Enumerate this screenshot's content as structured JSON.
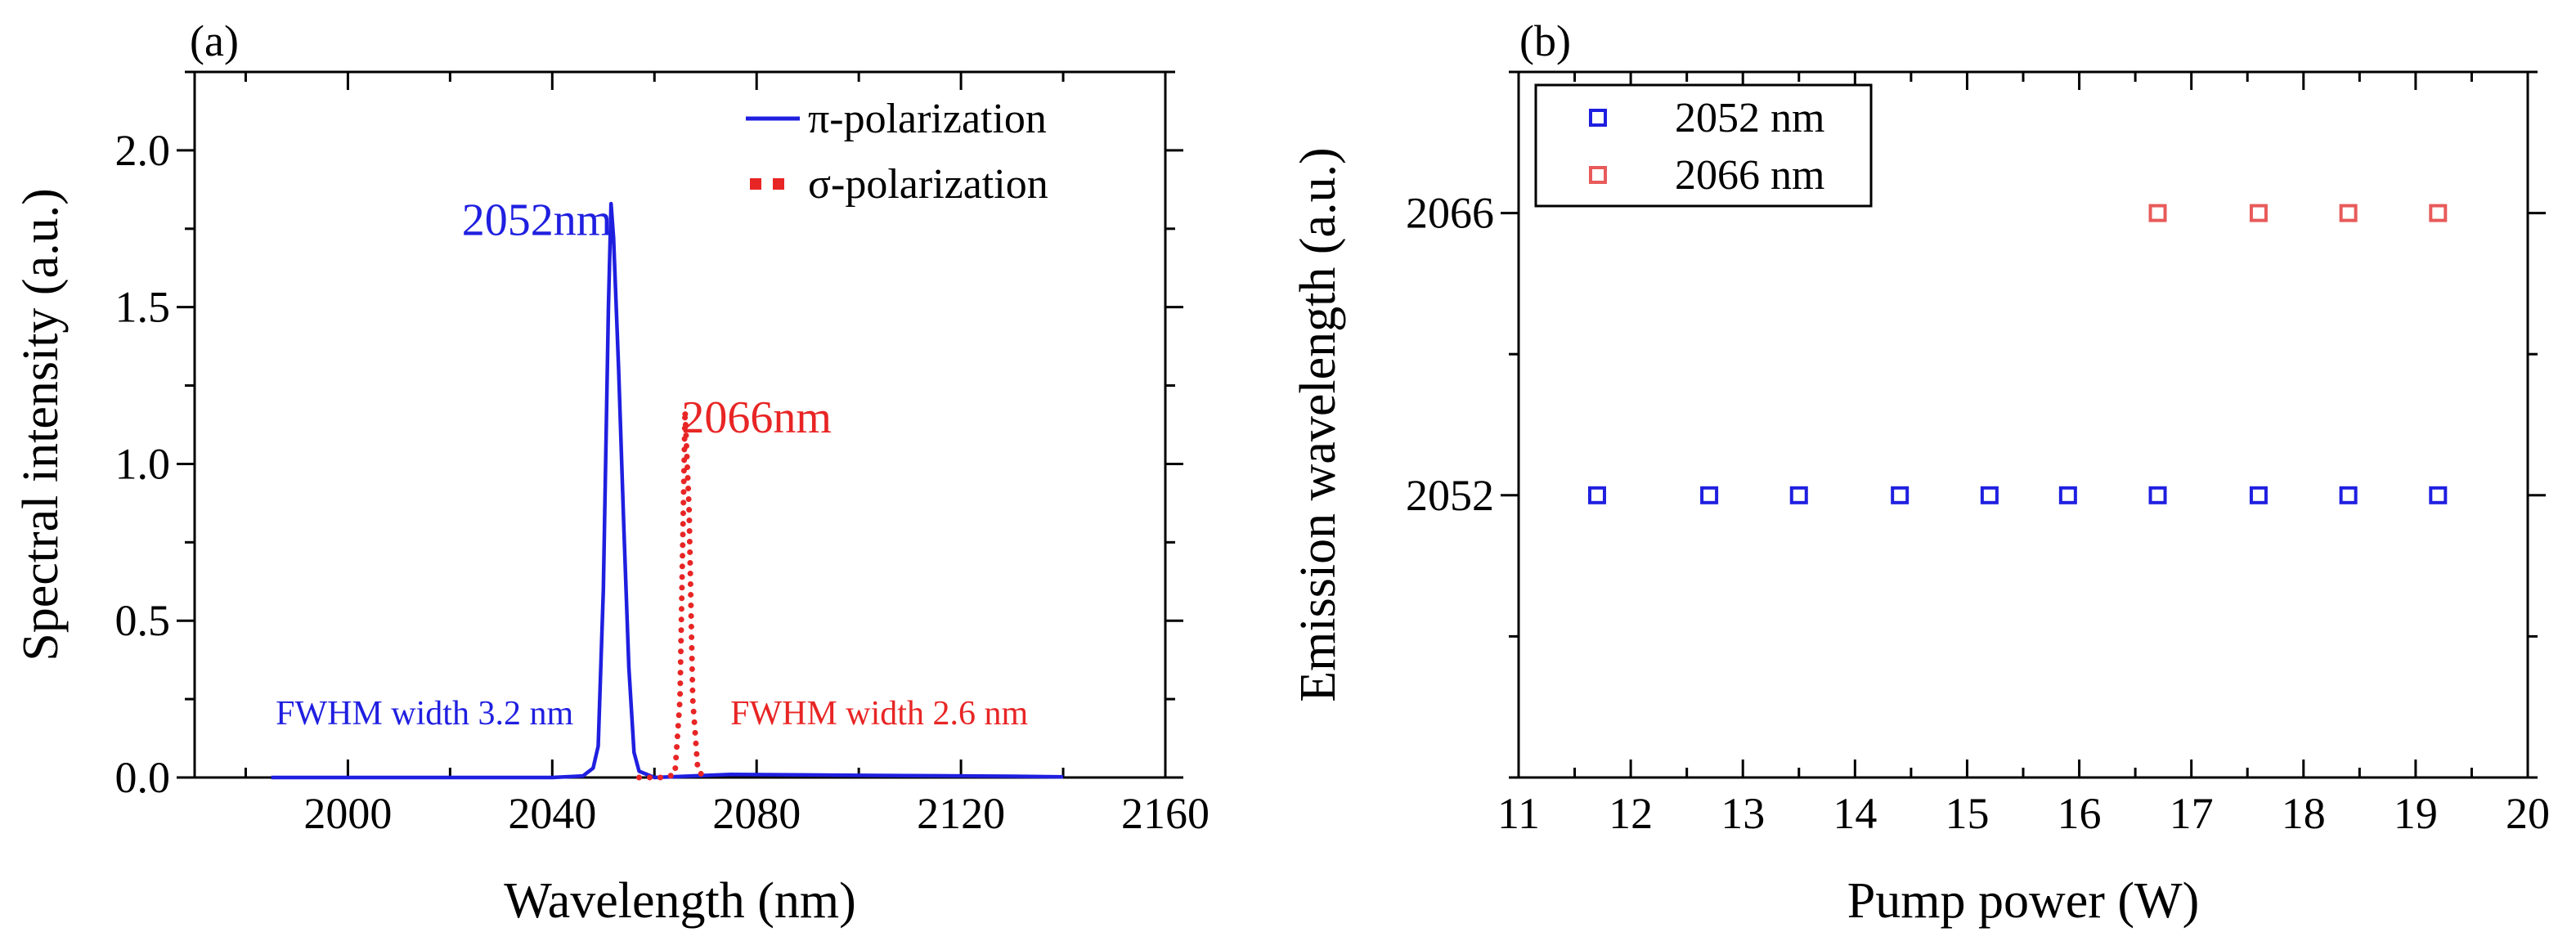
{
  "chart_data": [
    {
      "panel_label": "(a)",
      "type": "line",
      "xlabel": "Wavelength (nm)",
      "ylabel": "Spectral intensity (a.u.)",
      "xlim": [
        1970,
        2160
      ],
      "ylim": [
        0,
        2.25
      ],
      "x_ticks": [
        2000,
        2040,
        2080,
        2120,
        2160
      ],
      "x_tick_labels": [
        "2000",
        "2040",
        "2080",
        "2120",
        "2160"
      ],
      "y_ticks": [
        0.0,
        0.5,
        1.0,
        1.5,
        2.0
      ],
      "y_tick_labels": [
        "0.0",
        "0.5",
        "1.0",
        "1.5",
        "2.0"
      ],
      "legend_position": "top-right",
      "series": [
        {
          "name": "π-polarization",
          "color": "#1f1fe0",
          "style": "solid",
          "points": [
            [
              1985,
              0.0
            ],
            [
              2040,
              0.0
            ],
            [
              2046,
              0.005
            ],
            [
              2048,
              0.03
            ],
            [
              2049,
              0.1
            ],
            [
              2050,
              0.6
            ],
            [
              2051,
              1.5
            ],
            [
              2051.5,
              1.83
            ],
            [
              2052,
              1.72
            ],
            [
              2053,
              1.3
            ],
            [
              2054,
              0.8
            ],
            [
              2055,
              0.35
            ],
            [
              2056,
              0.08
            ],
            [
              2057,
              0.02
            ],
            [
              2060,
              0.0
            ],
            [
              2075,
              0.01
            ],
            [
              2090,
              0.008
            ],
            [
              2110,
              0.006
            ],
            [
              2130,
              0.004
            ],
            [
              2140,
              0.002
            ]
          ]
        },
        {
          "name": "σ-polarization",
          "color": "#e82525",
          "style": "dotted",
          "points": [
            [
              2057,
              0.0
            ],
            [
              2062,
              0.0
            ],
            [
              2064,
              0.01
            ],
            [
              2065,
              0.25
            ],
            [
              2066,
              1.17
            ],
            [
              2066.8,
              0.85
            ],
            [
              2067.5,
              0.25
            ],
            [
              2068.5,
              0.02
            ],
            [
              2070,
              0.0
            ]
          ]
        }
      ],
      "annotations": [
        {
          "text": "2052nm",
          "color": "#1f1fe0",
          "x": 2037,
          "y": 1.73
        },
        {
          "text": "2066nm",
          "color": "#e82525",
          "x": 2080,
          "y": 1.1
        },
        {
          "text": "FWHM width 3.2 nm",
          "color": "#1f1fe0",
          "x": 2015,
          "y": 0.17
        },
        {
          "text": "FWHM width 2.6 nm",
          "color": "#e82525",
          "x": 2104,
          "y": 0.17
        }
      ]
    },
    {
      "panel_label": "(b)",
      "type": "scatter",
      "xlabel": "Pump power (W)",
      "ylabel": "Emission wavelength (a.u.)",
      "xlim": [
        11,
        20
      ],
      "ylim": [
        2038,
        2073
      ],
      "x_ticks": [
        11,
        12,
        13,
        14,
        15,
        16,
        17,
        18,
        19,
        20
      ],
      "x_tick_labels": [
        "11",
        "12",
        "13",
        "14",
        "15",
        "16",
        "17",
        "18",
        "19",
        "20"
      ],
      "y_ticks": [
        2052,
        2066
      ],
      "y_tick_labels": [
        "2052",
        "2066"
      ],
      "legend_position": "top-left",
      "series": [
        {
          "name": "2052 nm",
          "color": "#1f1fe0",
          "marker": "open-square",
          "x": [
            11.7,
            12.7,
            13.5,
            14.4,
            15.2,
            15.9,
            16.7,
            17.6,
            18.4,
            19.2
          ],
          "y": [
            2052,
            2052,
            2052,
            2052,
            2052,
            2052,
            2052,
            2052,
            2052,
            2052
          ]
        },
        {
          "name": "2066 nm",
          "color": "#e85a5a",
          "marker": "open-square",
          "x": [
            16.7,
            17.6,
            18.4,
            19.2
          ],
          "y": [
            2066,
            2066,
            2066,
            2066
          ]
        }
      ]
    }
  ]
}
